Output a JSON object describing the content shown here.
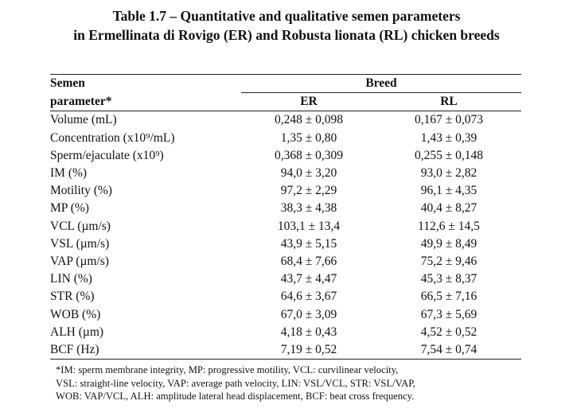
{
  "title": {
    "line1": "Table 1.7 – Quantitative and qualitative semen parameters",
    "line2": "in Ermellinata di Rovigo (ER) and Robusta lionata (RL) chicken breeds"
  },
  "table": {
    "header_param_line1": "Semen",
    "header_param_line2": "parameter*",
    "header_breed": "Breed",
    "header_er": "ER",
    "header_rl": "RL",
    "rows": [
      {
        "param": "Volume (mL)",
        "er": "0,248 ± 0,098",
        "rl": "0,167 ± 0,073"
      },
      {
        "param": "Concentration (x10⁹/mL)",
        "er": "1,35 ± 0,80",
        "rl": "1,43 ± 0,39"
      },
      {
        "param": "Sperm/ejaculate (x10⁹)",
        "er": "0,368 ± 0,309",
        "rl": "0,255 ± 0,148"
      },
      {
        "param": "IM (%)",
        "er": "94,0 ± 3,20",
        "rl": "93,0 ± 2,82"
      },
      {
        "param": "Motility (%)",
        "er": "97,2 ± 2,29",
        "rl": "96,1 ± 4,35"
      },
      {
        "param": "MP (%)",
        "er": "38,3 ± 4,38",
        "rl": "40,4 ± 8,27"
      },
      {
        "param": "VCL (µm/s)",
        "er": "103,1 ± 13,4",
        "rl": "112,6 ± 14,5"
      },
      {
        "param": "VSL (µm/s)",
        "er": "43,9 ± 5,15",
        "rl": "49,9 ± 8,49"
      },
      {
        "param": "VAP (µm/s)",
        "er": "68,4 ± 7,66",
        "rl": "75,2 ± 9,46"
      },
      {
        "param": "LIN (%)",
        "er": "43,7 ± 4,47",
        "rl": "45,3 ± 8,37"
      },
      {
        "param": "STR (%)",
        "er": "64,6 ± 3,67",
        "rl": "66,5 ± 7,16"
      },
      {
        "param": "WOB (%)",
        "er": "67,0 ± 3,09",
        "rl": "67,3 ± 5,69"
      },
      {
        "param": "ALH (µm)",
        "er": "4,18 ± 0,43",
        "rl": "4,52 ± 0,52"
      },
      {
        "param": "BCF (Hz)",
        "er": "7,19 ± 0,52",
        "rl": "7,54 ± 0,74"
      }
    ]
  },
  "footnote": {
    "line1": "*IM: sperm membrane integrity, MP: progressive motility, VCL: curvilinear velocity,",
    "line2": "VSL: straight-line velocity, VAP: average path velocity, LIN: VSL/VCL, STR: VSL/VAP,",
    "line3": "WOB: VAP/VCL, ALH: amplitude lateral head displacement, BCF: beat cross frequency."
  }
}
